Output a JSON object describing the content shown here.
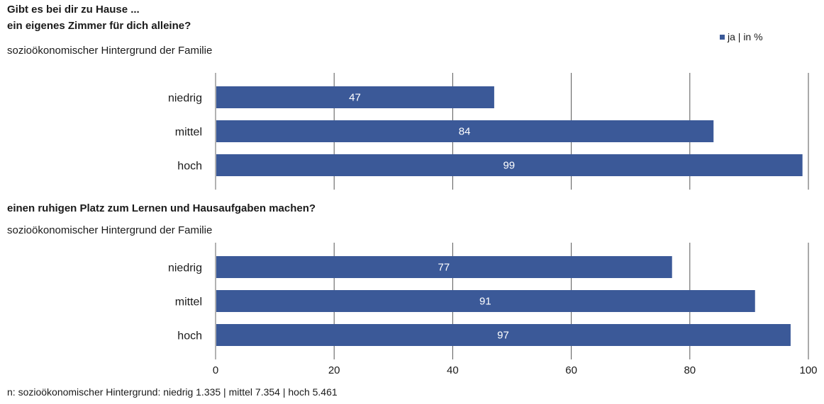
{
  "header": {
    "title_line1": "Gibt es bei dir zu Hause ...",
    "title_line2": "ein eigenes Zimmer für dich alleine?",
    "subtitle": "sozioökonomischer Hintergrund der Familie"
  },
  "legend": {
    "label": "ja | in %",
    "color": "#3b5998"
  },
  "panel2": {
    "title": "einen ruhigen Platz zum Lernen und Hausaufgaben machen?",
    "subtitle": "sozioökonomischer Hintergrund der Familie"
  },
  "footnote": "n: sozioökonomischer Hintergrund: niedrig 1.335 | mittel 7.354 | hoch 5.461",
  "chart_data": [
    {
      "type": "bar",
      "orientation": "horizontal",
      "title": "ein eigenes Zimmer für dich alleine?",
      "categories": [
        "niedrig",
        "mittel",
        "hoch"
      ],
      "series": [
        {
          "name": "ja | in %",
          "values": [
            47,
            84,
            99
          ]
        }
      ],
      "xlim": [
        0,
        100
      ],
      "xticks": [
        0,
        20,
        40,
        60,
        80,
        100
      ],
      "grid": true,
      "legend_position": "top-right"
    },
    {
      "type": "bar",
      "orientation": "horizontal",
      "title": "einen ruhigen Platz zum Lernen und Hausaufgaben machen?",
      "categories": [
        "niedrig",
        "mittel",
        "hoch"
      ],
      "series": [
        {
          "name": "ja | in %",
          "values": [
            77,
            91,
            97
          ]
        }
      ],
      "xlim": [
        0,
        100
      ],
      "xticks": [
        0,
        20,
        40,
        60,
        80,
        100
      ],
      "grid": true
    }
  ]
}
